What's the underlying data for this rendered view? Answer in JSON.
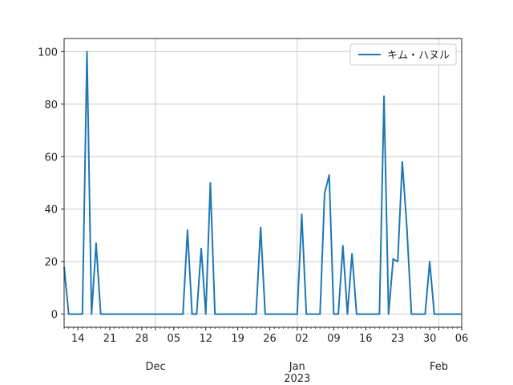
{
  "chart_data": {
    "type": "line",
    "title": "",
    "xlabel": "",
    "ylabel": "",
    "x_start": "2022-11-11",
    "x_end": "2023-02-06",
    "xlim": [
      "2022-11-11",
      "2023-02-06"
    ],
    "ylim": [
      -5,
      105
    ],
    "grid": true,
    "legend_position": "top-right",
    "x_major_ticks": [
      {
        "date": "2022-11-14",
        "label": "14"
      },
      {
        "date": "2022-11-21",
        "label": "21"
      },
      {
        "date": "2022-11-28",
        "label": "28"
      },
      {
        "date": "2022-12-05",
        "label": "05"
      },
      {
        "date": "2022-12-12",
        "label": "12"
      },
      {
        "date": "2022-12-19",
        "label": "19"
      },
      {
        "date": "2022-12-26",
        "label": "26"
      },
      {
        "date": "2023-01-02",
        "label": "02"
      },
      {
        "date": "2023-01-09",
        "label": "09"
      },
      {
        "date": "2023-01-16",
        "label": "16"
      },
      {
        "date": "2023-01-23",
        "label": "23"
      },
      {
        "date": "2023-01-30",
        "label": "30"
      },
      {
        "date": "2023-02-06",
        "label": "06"
      }
    ],
    "x_month_labels": [
      {
        "date": "2022-12-01",
        "label": "Dec"
      },
      {
        "date": "2023-01-01",
        "label": "Jan\n2023"
      },
      {
        "date": "2023-02-01",
        "label": "Feb"
      }
    ],
    "y_ticks": [
      0,
      20,
      40,
      60,
      80,
      100
    ],
    "series": [
      {
        "name": "キム・ハヌル",
        "color": "#1f77b4",
        "values": [
          [
            "2022-11-11",
            18
          ],
          [
            "2022-11-12",
            0
          ],
          [
            "2022-11-13",
            0
          ],
          [
            "2022-11-14",
            0
          ],
          [
            "2022-11-15",
            0
          ],
          [
            "2022-11-16",
            100
          ],
          [
            "2022-11-17",
            0
          ],
          [
            "2022-11-18",
            27
          ],
          [
            "2022-11-19",
            0
          ],
          [
            "2022-11-20",
            0
          ],
          [
            "2022-11-21",
            0
          ],
          [
            "2022-11-22",
            0
          ],
          [
            "2022-11-23",
            0
          ],
          [
            "2022-11-24",
            0
          ],
          [
            "2022-11-25",
            0
          ],
          [
            "2022-11-26",
            0
          ],
          [
            "2022-11-27",
            0
          ],
          [
            "2022-11-28",
            0
          ],
          [
            "2022-11-29",
            0
          ],
          [
            "2022-11-30",
            0
          ],
          [
            "2022-12-01",
            0
          ],
          [
            "2022-12-02",
            0
          ],
          [
            "2022-12-03",
            0
          ],
          [
            "2022-12-04",
            0
          ],
          [
            "2022-12-05",
            0
          ],
          [
            "2022-12-06",
            0
          ],
          [
            "2022-12-07",
            0
          ],
          [
            "2022-12-08",
            32
          ],
          [
            "2022-12-09",
            0
          ],
          [
            "2022-12-10",
            0
          ],
          [
            "2022-12-11",
            25
          ],
          [
            "2022-12-12",
            0
          ],
          [
            "2022-12-13",
            50
          ],
          [
            "2022-12-14",
            0
          ],
          [
            "2022-12-15",
            0
          ],
          [
            "2022-12-16",
            0
          ],
          [
            "2022-12-17",
            0
          ],
          [
            "2022-12-18",
            0
          ],
          [
            "2022-12-19",
            0
          ],
          [
            "2022-12-20",
            0
          ],
          [
            "2022-12-21",
            0
          ],
          [
            "2022-12-22",
            0
          ],
          [
            "2022-12-23",
            0
          ],
          [
            "2022-12-24",
            33
          ],
          [
            "2022-12-25",
            0
          ],
          [
            "2022-12-26",
            0
          ],
          [
            "2022-12-27",
            0
          ],
          [
            "2022-12-28",
            0
          ],
          [
            "2022-12-29",
            0
          ],
          [
            "2022-12-30",
            0
          ],
          [
            "2022-12-31",
            0
          ],
          [
            "2023-01-01",
            0
          ],
          [
            "2023-01-02",
            38
          ],
          [
            "2023-01-03",
            0
          ],
          [
            "2023-01-04",
            0
          ],
          [
            "2023-01-05",
            0
          ],
          [
            "2023-01-06",
            0
          ],
          [
            "2023-01-07",
            46
          ],
          [
            "2023-01-08",
            53
          ],
          [
            "2023-01-09",
            0
          ],
          [
            "2023-01-10",
            0
          ],
          [
            "2023-01-11",
            26
          ],
          [
            "2023-01-12",
            0
          ],
          [
            "2023-01-13",
            23
          ],
          [
            "2023-01-14",
            0
          ],
          [
            "2023-01-15",
            0
          ],
          [
            "2023-01-16",
            0
          ],
          [
            "2023-01-17",
            0
          ],
          [
            "2023-01-18",
            0
          ],
          [
            "2023-01-19",
            0
          ],
          [
            "2023-01-20",
            83
          ],
          [
            "2023-01-21",
            0
          ],
          [
            "2023-01-22",
            21
          ],
          [
            "2023-01-23",
            20
          ],
          [
            "2023-01-24",
            58
          ],
          [
            "2023-01-25",
            33
          ],
          [
            "2023-01-26",
            0
          ],
          [
            "2023-01-27",
            0
          ],
          [
            "2023-01-28",
            0
          ],
          [
            "2023-01-29",
            0
          ],
          [
            "2023-01-30",
            20
          ],
          [
            "2023-01-31",
            0
          ],
          [
            "2023-02-01",
            0
          ],
          [
            "2023-02-02",
            0
          ],
          [
            "2023-02-03",
            0
          ],
          [
            "2023-02-04",
            0
          ],
          [
            "2023-02-05",
            0
          ],
          [
            "2023-02-06",
            0
          ]
        ]
      }
    ]
  }
}
